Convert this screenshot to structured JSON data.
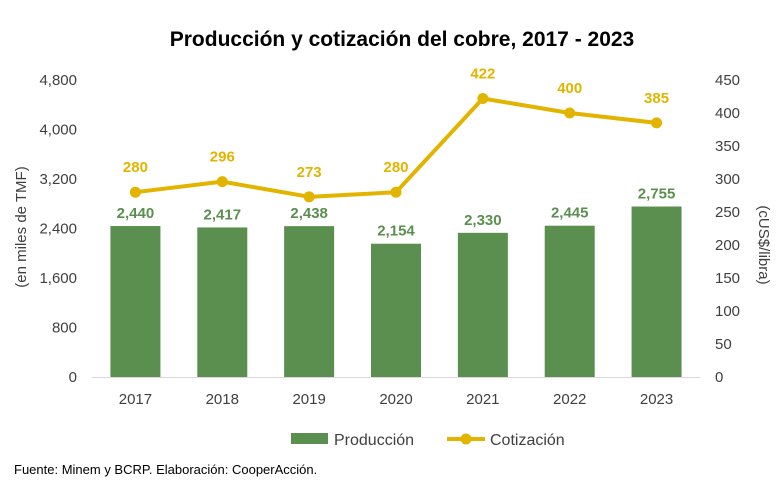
{
  "colors": {
    "bars": "#5B8F4F",
    "line": "#E2B400",
    "bar_labels": "#5B8F4F",
    "line_labels": "#E2B400",
    "axis_text": "#404040",
    "axis_line": "#D9D9D9"
  },
  "chart_data": {
    "type": "bar",
    "title": "Producción y cotización del cobre, 2017 - 2023",
    "categories": [
      "2017",
      "2018",
      "2019",
      "2020",
      "2021",
      "2022",
      "2023"
    ],
    "series": [
      {
        "name": "Producción",
        "type": "bar",
        "axis": "left",
        "values": [
          2440,
          2417,
          2438,
          2154,
          2330,
          2445,
          2755
        ],
        "labels": [
          "2,440",
          "2,417",
          "2,438",
          "2,154",
          "2,330",
          "2,445",
          "2,755"
        ]
      },
      {
        "name": "Cotización",
        "type": "line",
        "axis": "right",
        "values": [
          280,
          296,
          273,
          280,
          422,
          400,
          385
        ],
        "labels": [
          "280",
          "296",
          "273",
          "280",
          "422",
          "400",
          "385"
        ]
      }
    ],
    "ylabel": "(en miles de TMF)",
    "y2label": "(cUS$/libra)",
    "ylim": [
      0,
      4800
    ],
    "y2lim": [
      0,
      450
    ],
    "yticks": [
      "0",
      "800",
      "1,600",
      "2,400",
      "3,200",
      "4,000",
      "4,800"
    ],
    "y2ticks": [
      "0",
      "50",
      "100",
      "150",
      "200",
      "250",
      "300",
      "350",
      "400",
      "450"
    ],
    "grid": false,
    "legend": "bottom"
  },
  "footer": {
    "source": "Fuente: Minem y BCRP. Elaboración: CooperAcción."
  }
}
